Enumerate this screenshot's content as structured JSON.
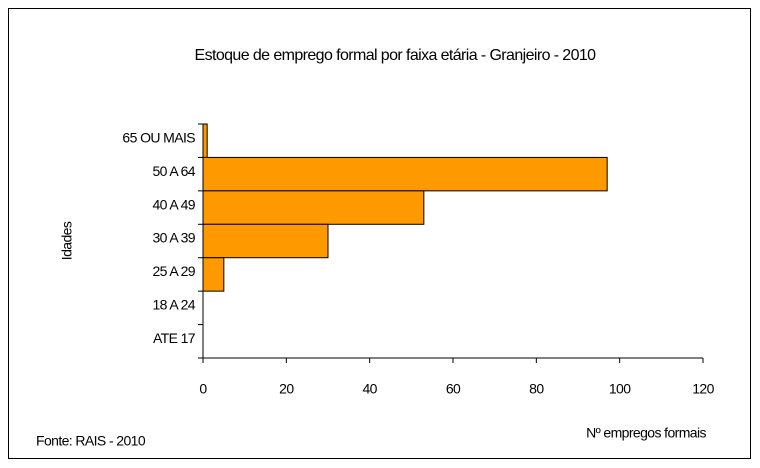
{
  "chart_data": {
    "type": "hbar",
    "title": "Estoque de emprego formal por faixa etária - Granjeiro - 2010",
    "x_label": "Nº empregos formais",
    "y_label": "Idades",
    "source": "Fonte: RAIS - 2010",
    "categories": [
      "65 OU MAIS",
      "50 A 64",
      "40 A 49",
      "30 A 39",
      "25 A 29",
      "18 A 24",
      "ATE 17"
    ],
    "values": [
      1,
      97,
      53,
      30,
      5,
      0,
      0
    ],
    "color": "#ff9900",
    "xlim": [
      0,
      120
    ],
    "xticks": [
      0,
      20,
      40,
      60,
      80,
      100,
      120
    ],
    "grid": false
  }
}
